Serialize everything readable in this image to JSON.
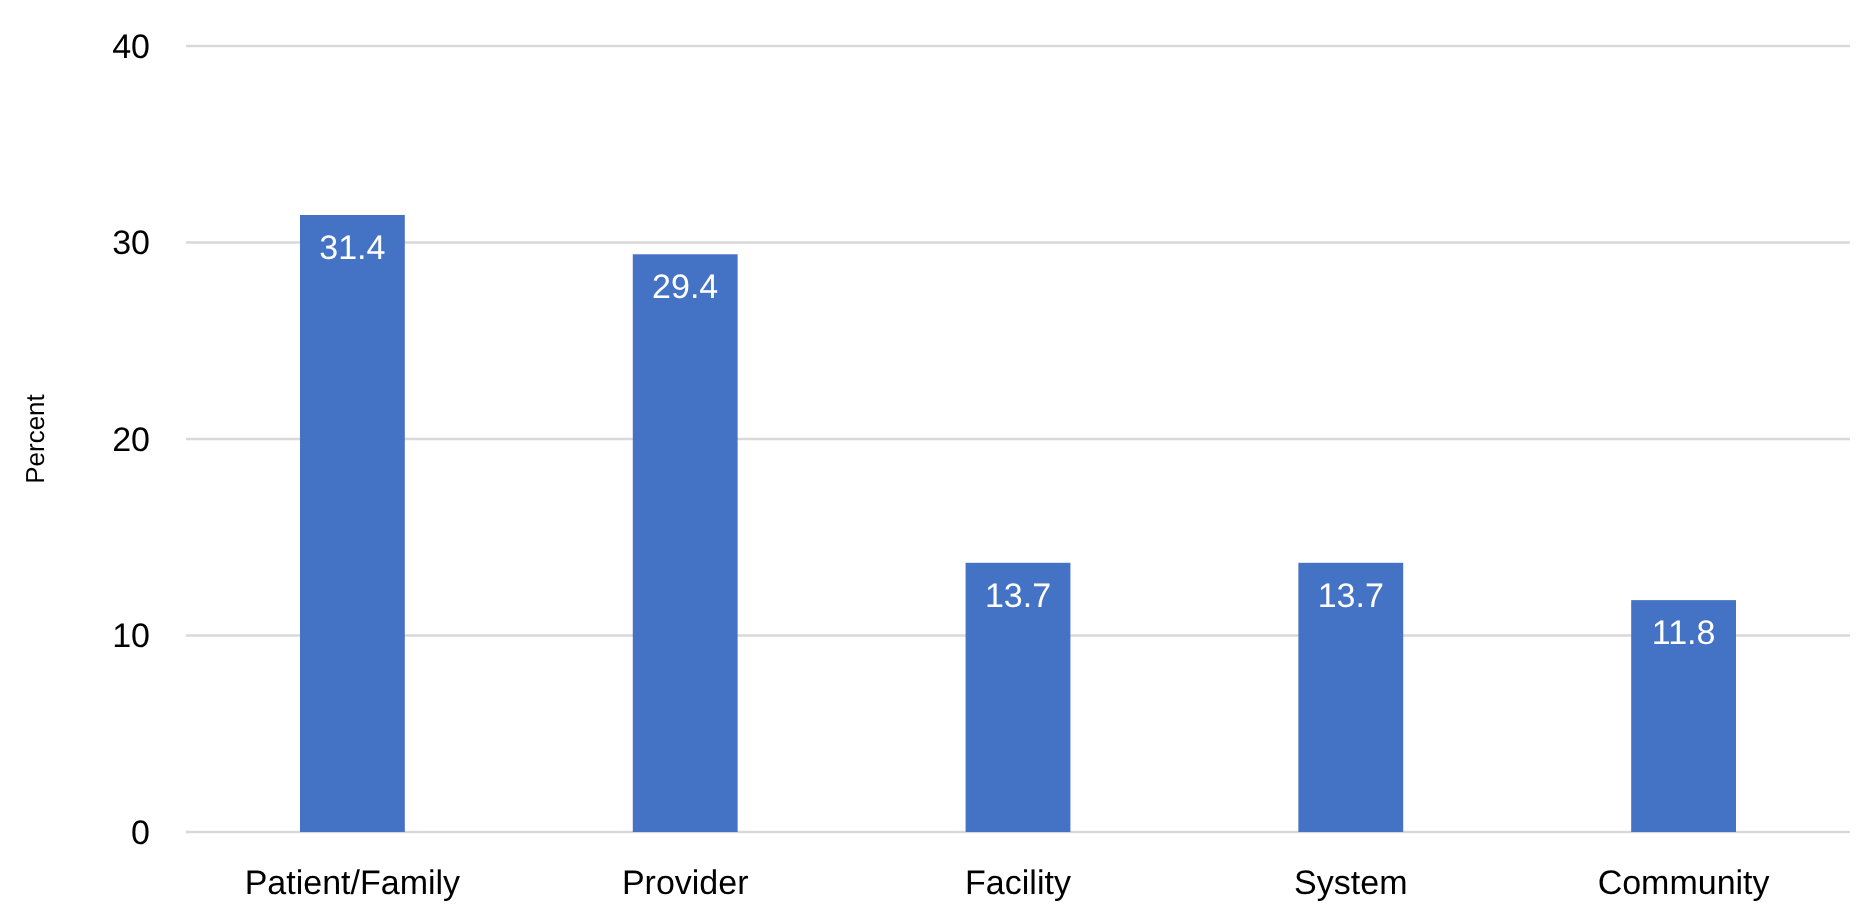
{
  "chart_data": {
    "type": "bar",
    "ylabel": "Percent",
    "categories": [
      "Patient/Family",
      "Provider",
      "Facility",
      "System",
      "Community"
    ],
    "values": [
      31.4,
      29.4,
      13.7,
      13.7,
      11.8
    ],
    "color": "#4472c4",
    "ylim": [
      0,
      40
    ],
    "yticks": [
      0,
      10,
      20,
      30,
      40
    ],
    "grid": "y",
    "data_labels": true
  }
}
